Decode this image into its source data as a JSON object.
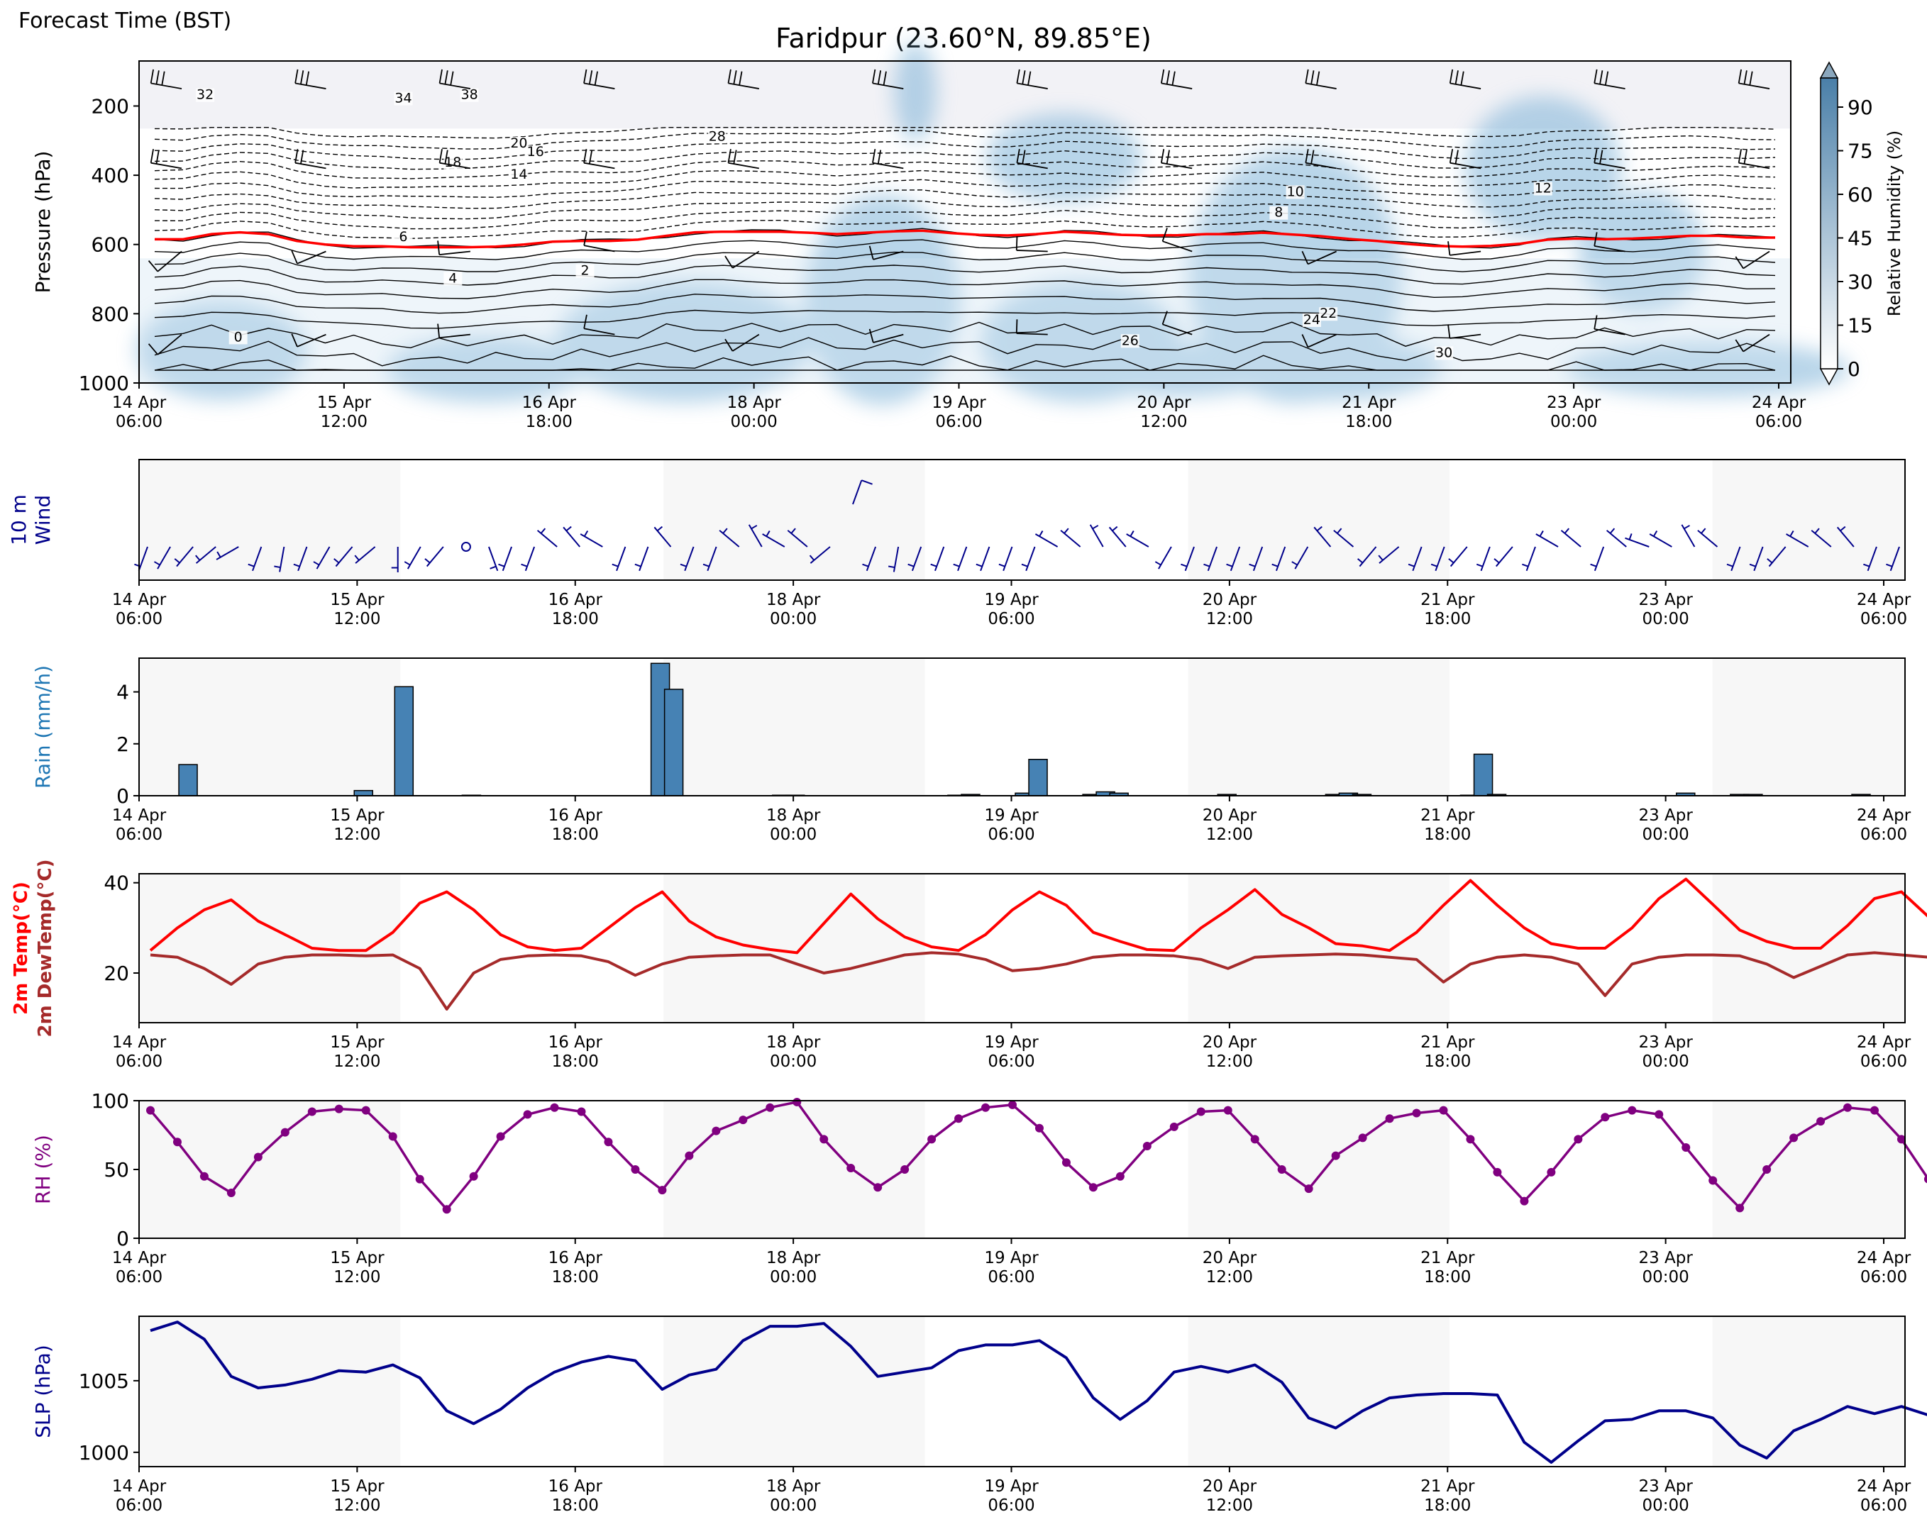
{
  "header": {
    "forecast_time_label": "Forecast Time (BST)",
    "title": "Faridpur (23.60°N, 89.85°E)"
  },
  "time_ticks": [
    {
      "day": "14 Apr",
      "time": "06:00"
    },
    {
      "day": "15 Apr",
      "time": "12:00"
    },
    {
      "day": "16 Apr",
      "time": "18:00"
    },
    {
      "day": "18 Apr",
      "time": "00:00"
    },
    {
      "day": "19 Apr",
      "time": "06:00"
    },
    {
      "day": "20 Apr",
      "time": "12:00"
    },
    {
      "day": "21 Apr",
      "time": "18:00"
    },
    {
      "day": "23 Apr",
      "time": "00:00"
    },
    {
      "day": "24 Apr",
      "time": "06:00"
    }
  ],
  "colors": {
    "freezing_line": "#ff0000",
    "temp": "#ff0000",
    "dewtemp": "#a52a2a",
    "rain": "#4682b4",
    "rain_label": "#1f77b4",
    "rh": "#800080",
    "slp": "#00008b",
    "wind": "#00008b",
    "night_shade": "#f7f7f7",
    "humidity_dark": "#4a7fa8"
  },
  "chart_data": [
    {
      "id": "cross_section",
      "type": "heatmap",
      "ylabel": "Pressure (hPa)",
      "ylim": [
        1000,
        100
      ],
      "yticks": [
        200,
        400,
        600,
        800,
        1000
      ],
      "colorbar": {
        "label": "Relative Humidity (%)",
        "ticks": [
          0,
          15,
          30,
          45,
          60,
          75,
          90
        ],
        "range": [
          0,
          100
        ]
      },
      "freezing_level_hpa": [
        585,
        585,
        570,
        565,
        570,
        590,
        600,
        605,
        605,
        608,
        608,
        608,
        606,
        600,
        592,
        590,
        590,
        586,
        575,
        565,
        563,
        563,
        563,
        566,
        570,
        566,
        562,
        560,
        567,
        572,
        574,
        570,
        563,
        567,
        572,
        574,
        573,
        570,
        570,
        566,
        571,
        576,
        584,
        590,
        598,
        604,
        606,
        604,
        598,
        586,
        583,
        585,
        583,
        579,
        575,
        575,
        580,
        580
      ],
      "temperature_contour_labels": [
        "32",
        "34",
        "38",
        "28",
        "20",
        "18",
        "16",
        "14",
        "12",
        "10",
        "8",
        "6",
        "4",
        "2",
        "0",
        "22",
        "24",
        "26",
        "30"
      ]
    },
    {
      "id": "wind10m",
      "type": "scatter",
      "ylabel": "10 m\nWind",
      "note": "wind barbs",
      "direction_deg": [
        200,
        210,
        220,
        230,
        240,
        200,
        190,
        200,
        210,
        220,
        230,
        180,
        210,
        220,
        0,
        160,
        200,
        200,
        310,
        320,
        300,
        200,
        200,
        320,
        200,
        200,
        310,
        330,
        300,
        310,
        230,
        20,
        200,
        190,
        200,
        200,
        200,
        200,
        200,
        200,
        300,
        310,
        330,
        320,
        300,
        210,
        200,
        200,
        200,
        200,
        200,
        210,
        320,
        310,
        220,
        230,
        200,
        200,
        220,
        200,
        220,
        200,
        300,
        310,
        200,
        310,
        290,
        300,
        330,
        310,
        200,
        200,
        220,
        300,
        310,
        320,
        200,
        200
      ],
      "speed_kt": [
        4,
        5,
        5,
        6,
        7,
        5,
        5,
        5,
        6,
        6,
        7,
        5,
        5,
        6,
        0,
        5,
        5,
        6,
        6,
        6,
        7,
        5,
        5,
        6,
        5,
        5,
        6,
        6,
        6,
        6,
        6,
        10,
        5,
        5,
        6,
        6,
        5,
        5,
        6,
        5,
        5,
        6,
        6,
        6,
        6,
        5,
        5,
        6,
        6,
        5,
        6,
        6,
        6,
        6,
        5,
        6,
        6,
        5,
        6,
        6,
        6,
        5,
        5,
        6,
        6,
        6,
        5,
        6,
        6,
        6,
        5,
        6,
        6,
        6,
        6,
        6,
        5,
        6
      ]
    },
    {
      "id": "rain",
      "type": "bar",
      "ylabel": "Rain (mm/h)",
      "ylim": [
        0,
        5.3
      ],
      "yticks": [
        0,
        2,
        4
      ],
      "x_hours": [
        9,
        48,
        57,
        72,
        114,
        117,
        141,
        144,
        180,
        183,
        195,
        198,
        210,
        213,
        216,
        240,
        264,
        267,
        270,
        294,
        297,
        300,
        342,
        354,
        357,
        381
      ],
      "values": [
        1.2,
        0.2,
        4.2,
        0.02,
        5.1,
        4.1,
        0.02,
        0.02,
        0.02,
        0.05,
        0.1,
        1.4,
        0.05,
        0.15,
        0.1,
        0.05,
        0.05,
        0.1,
        0.05,
        0.02,
        1.6,
        0.05,
        0.1,
        0.05,
        0.05,
        0.05
      ]
    },
    {
      "id": "temperature",
      "type": "line",
      "ylabel": "2m Temp(°C)",
      "ylabel2": "2m DewTemp(°C)",
      "ylim": [
        9,
        42
      ],
      "yticks": [
        20,
        40
      ],
      "x_step_hours": 6,
      "series": [
        {
          "name": "2m Temp(°C)",
          "values": [
            25,
            30,
            34,
            36.2,
            31.5,
            28.5,
            25.5,
            25,
            25,
            29,
            35.5,
            38,
            34,
            28.5,
            25.8,
            25,
            25.5,
            30,
            34.5,
            38,
            31.5,
            28,
            26.2,
            25.2,
            24.5,
            31,
            37.5,
            32,
            28,
            25.8,
            25,
            28.5,
            34,
            38,
            35,
            29,
            27,
            25.2,
            25,
            30,
            34,
            38.5,
            33,
            30,
            26.5,
            26,
            25,
            29,
            35,
            40.5,
            35,
            30,
            26.5,
            25.5,
            25.5,
            30,
            36.5,
            40.8,
            35.2,
            29.5,
            27,
            25.5,
            25.5,
            30.5,
            36.5,
            38,
            32.5,
            28,
            26,
            25.5,
            25,
            29,
            34.5,
            37.5,
            35.5,
            28.5,
            26,
            26,
            26
          ]
        },
        {
          "name": "2m DewTemp(°C)",
          "values": [
            24,
            23.5,
            21,
            17.5,
            22,
            23.5,
            24,
            24,
            23.8,
            24,
            21,
            12,
            20,
            23,
            23.8,
            24,
            23.8,
            22.5,
            19.5,
            22,
            23.5,
            23.8,
            24,
            24,
            22,
            20,
            21,
            22.5,
            24,
            24.5,
            24.2,
            23,
            20.5,
            21,
            22,
            23.5,
            24,
            24,
            23.8,
            23,
            21,
            23.5,
            23.8,
            24,
            24.2,
            24,
            23.5,
            23,
            18,
            22,
            23.5,
            24,
            23.5,
            22,
            15,
            22,
            23.5,
            24,
            24,
            23.8,
            22,
            19,
            21.5,
            24,
            24.5,
            24,
            23.5,
            23,
            22.5,
            22,
            24,
            24.5,
            23.8,
            22,
            22.5,
            23,
            23.5,
            24,
            23.5
          ]
        }
      ]
    },
    {
      "id": "rh",
      "type": "line",
      "ylabel": "RH (%)",
      "ylim": [
        0,
        100
      ],
      "yticks": [
        0,
        50,
        100
      ],
      "x_step_hours": 6,
      "series": [
        {
          "name": "RH (%)",
          "values": [
            93,
            70,
            45,
            33,
            59,
            77,
            92,
            94,
            93,
            74,
            43,
            21,
            45,
            74,
            90,
            95,
            92,
            70,
            50,
            35,
            60,
            78,
            86,
            95,
            99,
            72,
            51,
            37,
            50,
            72,
            87,
            95,
            97,
            80,
            55,
            37,
            45,
            67,
            81,
            92,
            93,
            72,
            50,
            36,
            60,
            73,
            87,
            91,
            93,
            72,
            48,
            27,
            48,
            72,
            88,
            93,
            90,
            66,
            42,
            22,
            50,
            73,
            85,
            95,
            93,
            72,
            43,
            32,
            56,
            81,
            93,
            93,
            95,
            78,
            54,
            40,
            48,
            75,
            91,
            88,
            84
          ]
        }
      ]
    },
    {
      "id": "slp",
      "type": "line",
      "ylabel": "SLP (hPa)",
      "ylim": [
        999,
        1009.5
      ],
      "yticks": [
        1000,
        1005
      ],
      "x_step_hours": 6,
      "series": [
        {
          "name": "SLP (hPa)",
          "values": [
            1008.5,
            1009.1,
            1007.9,
            1005.3,
            1004.5,
            1004.7,
            1005.1,
            1005.7,
            1005.6,
            1006.1,
            1005.2,
            1002.9,
            1002,
            1003,
            1004.5,
            1005.6,
            1006.3,
            1006.7,
            1006.4,
            1004.4,
            1005.4,
            1005.8,
            1007.8,
            1008.8,
            1008.8,
            1009,
            1007.4,
            1005.3,
            1005.6,
            1005.9,
            1007.1,
            1007.5,
            1007.5,
            1007.8,
            1006.6,
            1003.8,
            1002.3,
            1003.6,
            1005.6,
            1006,
            1005.6,
            1006.1,
            1004.9,
            1002.4,
            1001.7,
            1002.9,
            1003.8,
            1004,
            1004.1,
            1004.1,
            1004,
            1000.7,
            999.3,
            1000.8,
            1002.2,
            1002.3,
            1002.9,
            1002.9,
            1002.4,
            1000.5,
            999.6,
            1001.5,
            1002.3,
            1003.2,
            1002.7,
            1003.2,
            1002.6,
            1000.9,
            1001.2,
            1002.5,
            1004.3,
            1004.5,
            1004.4,
            1005.2,
            1004.4,
            1002.2,
            1001.1,
            1001.8,
            1003.5,
            1004.5,
            1004.7
          ]
        }
      ]
    }
  ]
}
